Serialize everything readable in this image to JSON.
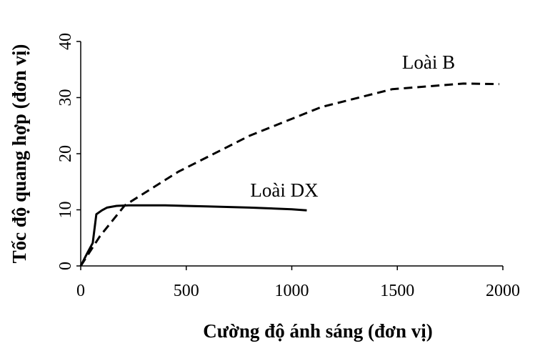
{
  "chart_data": {
    "type": "line",
    "x_label": "Cường độ ánh sáng (đơn vị)",
    "y_label": "Tốc độ quang hợp (đơn vị)",
    "xlim": [
      0,
      2000
    ],
    "xticks": [
      0,
      500,
      1000,
      1500,
      2000
    ],
    "ylim": [
      0,
      40
    ],
    "yticks": [
      0,
      10,
      20,
      30,
      40
    ],
    "series": [
      {
        "name": "Loài DX",
        "color": "#000000",
        "dash": false,
        "x": [
          0,
          30,
          57,
          74,
          100,
          125,
          170,
          226,
          400,
          600,
          800,
          1000,
          1071
        ],
        "values": [
          0,
          2.2,
          4.1,
          9.2,
          9.9,
          10.4,
          10.7,
          10.8,
          10.8,
          10.6,
          10.4,
          10.1,
          9.9
        ]
      },
      {
        "name": "Loài B",
        "color": "#000000",
        "dash": true,
        "x": [
          0,
          91,
          209,
          463,
          800,
          1139,
          1476,
          1814,
          1983
        ],
        "values": [
          0,
          5.3,
          10.8,
          16.8,
          23.2,
          28.3,
          31.5,
          32.5,
          32.4
        ]
      }
    ]
  }
}
